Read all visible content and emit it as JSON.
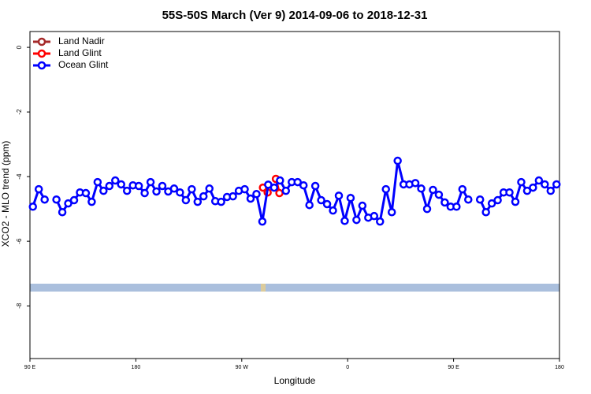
{
  "chart_data": {
    "type": "line",
    "title": "55S-50S March (Ver 9)   2014-09-06 to 2018-12-31",
    "xlabel": "Longitude",
    "ylabel": "XCO2 - MLO trend (ppm)",
    "xlim": [
      90,
      540
    ],
    "xticks": [
      {
        "value": 90,
        "label": "90 E"
      },
      {
        "value": 180,
        "label": "180"
      },
      {
        "value": 270,
        "label": "90 W"
      },
      {
        "value": 360,
        "label": "0"
      },
      {
        "value": 450,
        "label": "90 E"
      },
      {
        "value": 540,
        "label": "180"
      }
    ],
    "ylim": [
      -9.63,
      0.49
    ],
    "yticks": [
      0,
      -2,
      -4,
      -6,
      -8
    ],
    "legend": "top-left",
    "series": [
      {
        "name": "Land Nadir",
        "color": "#a52a2a",
        "x": [],
        "values": []
      },
      {
        "name": "Land Glint",
        "color": "#ff0000",
        "x": [
          288,
          292,
          295,
          299,
          302
        ],
        "values": [
          -4.34,
          -4.49,
          null,
          -4.07,
          -4.51
        ]
      },
      {
        "name": "Ocean Glint",
        "color": "#0000ff",
        "x": [
          92.5,
          97.5,
          102.5,
          107.5,
          112.5,
          117.5,
          122.5,
          127.5,
          132.5,
          137.5,
          142.5,
          147.5,
          152.5,
          157.5,
          162.5,
          167.5,
          172.5,
          177.5,
          182.5,
          187.5,
          192.5,
          197.5,
          202.5,
          207.5,
          212.5,
          217.5,
          222.5,
          227.5,
          232.5,
          237.5,
          242.5,
          247.5,
          252.5,
          257.5,
          262.5,
          267.5,
          272.5,
          277.5,
          282.5,
          287.5,
          292.5,
          297.5,
          302.5,
          307.5,
          312.5,
          317.5,
          322.5,
          327.5,
          332.5,
          337.5,
          342.5,
          347.5,
          352.5,
          357.5,
          362.5,
          367.5,
          372.5,
          377.5,
          382.5,
          387.5,
          392.5,
          397.5,
          402.5,
          407.5,
          412.5,
          417.5,
          422.5,
          427.5,
          432.5,
          437.5,
          442.5,
          447.5,
          452.5,
          457.5,
          462.5,
          467.5,
          472.5,
          477.5,
          482.5,
          487.5,
          492.5,
          497.5,
          502.5,
          507.5,
          512.5,
          517.5,
          522.5,
          527.5,
          532.5,
          537.5
        ],
        "values": [
          -4.93,
          -4.39,
          -4.71,
          null,
          -4.71,
          -5.1,
          -4.83,
          -4.73,
          -4.49,
          -4.51,
          -4.78,
          -4.17,
          -4.44,
          -4.29,
          -4.12,
          -4.24,
          -4.44,
          -4.27,
          -4.29,
          -4.51,
          -4.17,
          -4.46,
          -4.29,
          -4.46,
          -4.37,
          -4.49,
          -4.73,
          -4.39,
          -4.78,
          -4.61,
          -4.37,
          -4.76,
          -4.78,
          -4.63,
          -4.61,
          -4.44,
          -4.39,
          -4.68,
          -4.54,
          -5.39,
          -4.25,
          -4.34,
          -4.12,
          -4.44,
          -4.17,
          -4.17,
          -4.27,
          -4.88,
          -4.29,
          -4.73,
          -4.85,
          -5.05,
          -4.59,
          -5.37,
          -4.66,
          -5.34,
          -4.9,
          -5.27,
          -5.22,
          -5.39,
          -4.39,
          -5.1,
          -3.51,
          -4.24,
          -4.24,
          -4.2,
          -4.37,
          -5.0,
          -4.41,
          -4.56,
          -4.8,
          -4.93,
          -4.93,
          -4.39,
          -4.71,
          null,
          -4.71,
          -5.1,
          -4.83,
          -4.73,
          -4.49,
          -4.49,
          -4.78,
          -4.17,
          -4.44,
          -4.34,
          -4.12,
          -4.24,
          -4.44,
          -4.24
        ]
      }
    ]
  }
}
